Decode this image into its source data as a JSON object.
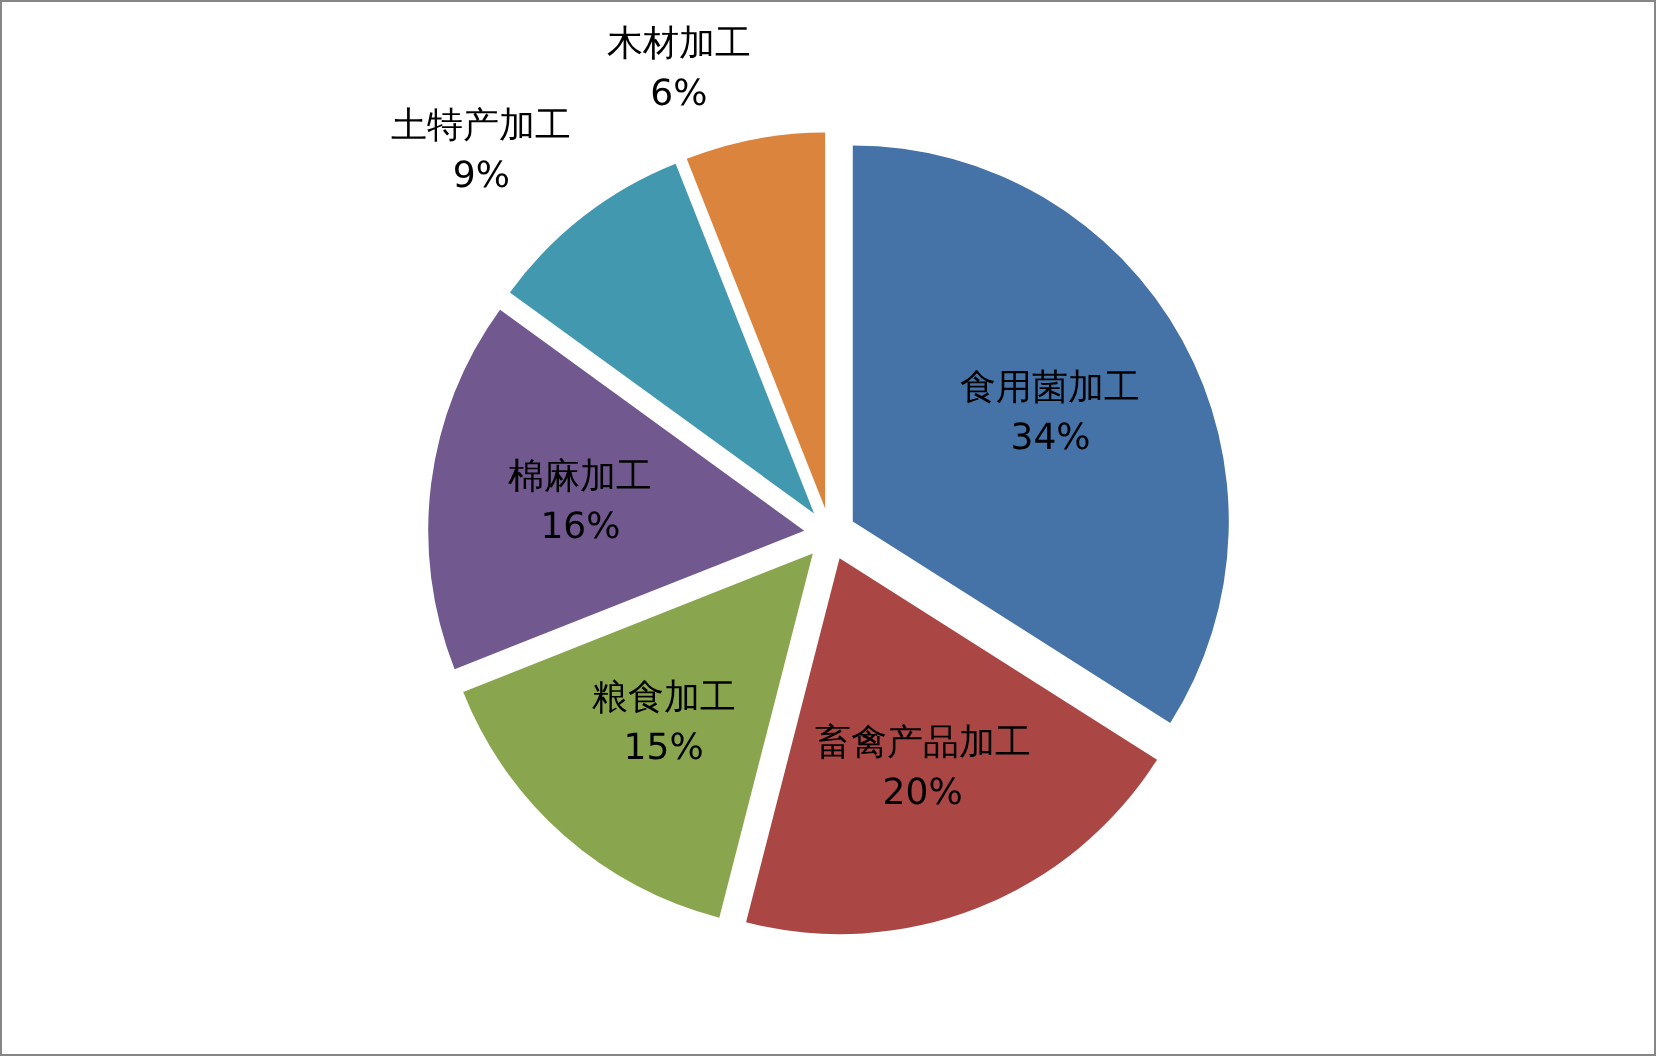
{
  "chart_data": {
    "type": "pie",
    "categories": [
      "食用菌加工",
      "畜禽产品加工",
      "粮食加工",
      "棉麻加工",
      "土特产加工",
      "木材加工"
    ],
    "values": [
      34,
      20,
      15,
      16,
      9,
      6
    ],
    "colors": [
      "#4572a7",
      "#aa4643",
      "#89a54e",
      "#71588f",
      "#4198af",
      "#db843d"
    ],
    "value_labels": [
      "34%",
      "20%",
      "15%",
      "16%",
      "9%",
      "6%"
    ]
  }
}
